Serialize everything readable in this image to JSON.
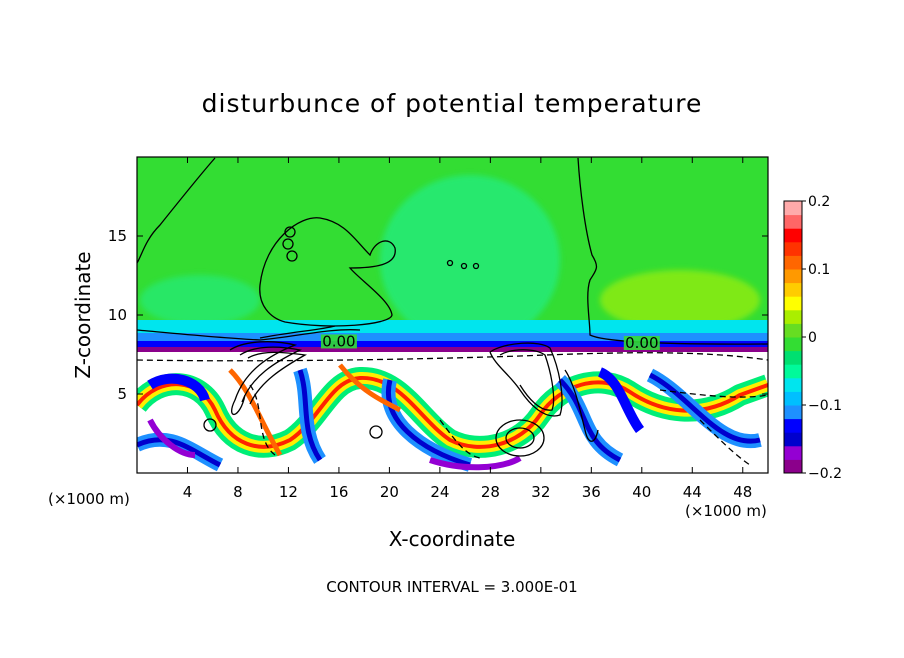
{
  "chart_data": {
    "type": "heatmap",
    "title": "disturbunce of potential temperature",
    "xlabel": "X-coordinate",
    "ylabel": "Z-coordinate",
    "x_unit_left": "(×1000 m)",
    "x_unit_right": "(×1000 m)",
    "xlim": [
      0,
      50
    ],
    "ylim": [
      0,
      20
    ],
    "x_ticks": [
      4,
      8,
      12,
      16,
      20,
      24,
      28,
      32,
      36,
      40,
      44,
      48
    ],
    "y_ticks": [
      5,
      10,
      15
    ],
    "colorbar": {
      "ticks": [
        0.2,
        0.1,
        0,
        -0.1,
        -0.2
      ],
      "tick_labels": [
        "0.2",
        "0.1",
        "0",
        "−0.1",
        "−0.2"
      ],
      "vmin": -0.2,
      "vmax": 0.2,
      "colors": [
        "#8b008b",
        "#9400d3",
        "#0000cd",
        "#0000ff",
        "#1e90ff",
        "#00bfff",
        "#00e5ee",
        "#00fa9a",
        "#00e070",
        "#33dd33",
        "#66dd22",
        "#aaee00",
        "#ffff00",
        "#ffcc00",
        "#ff9900",
        "#ff6600",
        "#ff3300",
        "#ff0000",
        "#ff6666",
        "#ffaaaa"
      ]
    },
    "contour_labels": [
      {
        "x": 16,
        "z": 8.2,
        "text": "0.00"
      },
      {
        "x": 40,
        "z": 8.1,
        "text": "0.00"
      }
    ],
    "contour_interval_text": "CONTOUR INTERVAL = 3.000E-01",
    "grid": false
  }
}
